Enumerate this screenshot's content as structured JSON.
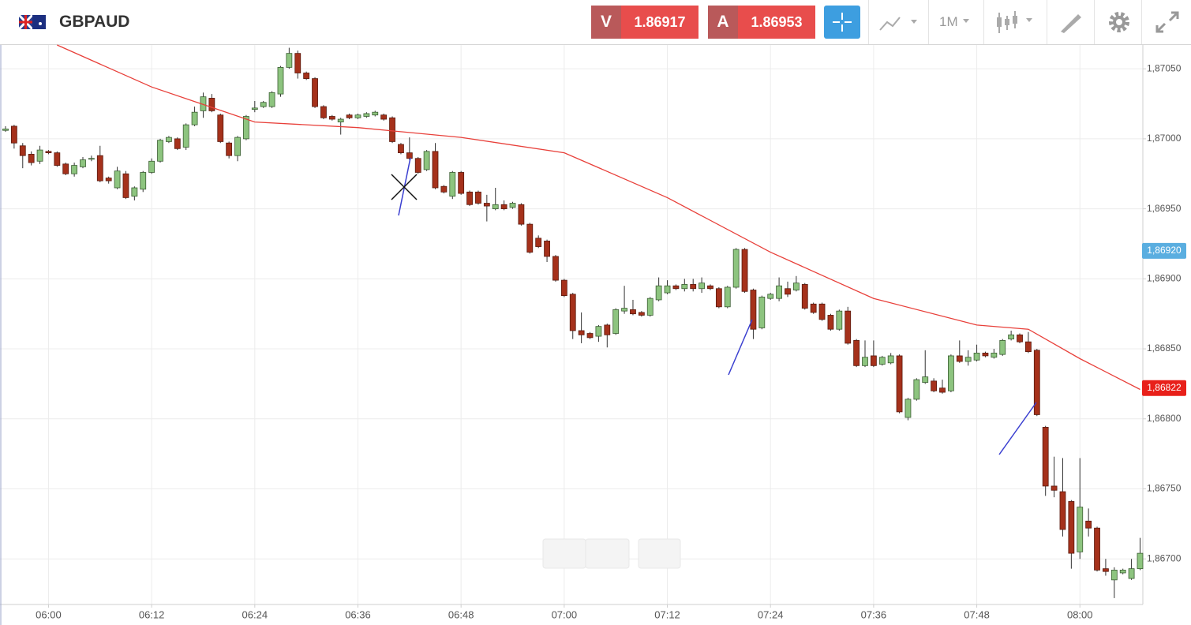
{
  "header": {
    "symbol": "GBPAUD",
    "bid_label": "V",
    "bid": "1.86917",
    "ask_label": "A",
    "ask": "1.86953",
    "timeframe": "1M"
  },
  "chart_data": {
    "type": "candlestick",
    "x": [
      "05:55",
      "05:56",
      "05:57",
      "05:58",
      "05:59",
      "06:00",
      "06:01",
      "06:02",
      "06:03",
      "06:04",
      "06:05",
      "06:06",
      "06:07",
      "06:08",
      "06:09",
      "06:10",
      "06:11",
      "06:12",
      "06:13",
      "06:14",
      "06:15",
      "06:16",
      "06:17",
      "06:18",
      "06:19",
      "06:20",
      "06:21",
      "06:22",
      "06:23",
      "06:24",
      "06:25",
      "06:26",
      "06:27",
      "06:28",
      "06:29",
      "06:30",
      "06:31",
      "06:32",
      "06:33",
      "06:34",
      "06:35",
      "06:36",
      "06:37",
      "06:38",
      "06:39",
      "06:40",
      "06:41",
      "06:42",
      "06:43",
      "06:44",
      "06:45",
      "06:46",
      "06:47",
      "06:48",
      "06:49",
      "06:50",
      "06:51",
      "06:52",
      "06:53",
      "06:54",
      "06:55",
      "06:56",
      "06:57",
      "06:58",
      "06:59",
      "07:00",
      "07:01",
      "07:02",
      "07:03",
      "07:04",
      "07:05",
      "07:06",
      "07:07",
      "07:08",
      "07:09",
      "07:10",
      "07:11",
      "07:12",
      "07:13",
      "07:14",
      "07:15",
      "07:16",
      "07:17",
      "07:18",
      "07:19",
      "07:20",
      "07:21",
      "07:22",
      "07:23",
      "07:24",
      "07:25",
      "07:26",
      "07:27",
      "07:28",
      "07:29",
      "07:30",
      "07:31",
      "07:32",
      "07:33",
      "07:34",
      "07:35",
      "07:36",
      "07:37",
      "07:38",
      "07:39",
      "07:40",
      "07:41",
      "07:42",
      "07:43",
      "07:44",
      "07:45",
      "07:46",
      "07:47",
      "07:48",
      "07:49",
      "07:50",
      "07:51",
      "07:52",
      "07:53",
      "07:54",
      "07:55",
      "07:56",
      "07:57",
      "07:58",
      "07:59",
      "08:00",
      "08:01",
      "08:02",
      "08:03",
      "08:04",
      "08:05",
      "08:06",
      "08:07"
    ],
    "open": [
      1.87006,
      1.87009,
      1.86995,
      1.86989,
      1.86984,
      1.86991,
      1.8699,
      1.86982,
      1.86975,
      1.8698,
      1.86986,
      1.86988,
      1.86972,
      1.86965,
      1.86975,
      1.86959,
      1.86964,
      1.86976,
      1.86984,
      1.86998,
      1.87,
      1.86994,
      1.8701,
      1.8702,
      1.87029,
      1.87017,
      1.86997,
      1.86988,
      1.87,
      1.87021,
      1.87023,
      1.87023,
      1.87032,
      1.87051,
      1.87061,
      1.87047,
      1.87043,
      1.87023,
      1.87016,
      1.87012,
      1.87017,
      1.87015,
      1.87016,
      1.87017,
      1.87017,
      1.87015,
      1.86996,
      1.8699,
      1.86986,
      1.86978,
      1.86991,
      1.86966,
      1.86959,
      1.86976,
      1.86962,
      1.86962,
      1.86954,
      1.8695,
      1.86953,
      1.86951,
      1.86953,
      1.86939,
      1.86929,
      1.86927,
      1.86916,
      1.86899,
      1.86889,
      1.86863,
      1.86861,
      1.86859,
      1.86867,
      1.86861,
      1.86877,
      1.86878,
      1.86876,
      1.86874,
      1.86885,
      1.8689,
      1.86895,
      1.86893,
      1.86896,
      1.86893,
      1.86895,
      1.86893,
      1.8688,
      1.86894,
      1.86921,
      1.86892,
      1.86865,
      1.86886,
      1.86886,
      1.86893,
      1.86892,
      1.86896,
      1.86882,
      1.86882,
      1.86874,
      1.86864,
      1.86877,
      1.86856,
      1.86838,
      1.86845,
      1.86839,
      1.8684,
      1.86845,
      1.86801,
      1.86814,
      1.86826,
      1.86827,
      1.86822,
      1.8682,
      1.86845,
      1.86841,
      1.86842,
      1.86847,
      1.86844,
      1.86846,
      1.86857,
      1.8686,
      1.86855,
      1.86849,
      1.86794,
      1.86752,
      1.86748,
      1.86741,
      1.86705,
      1.86727,
      1.86722,
      1.86693,
      1.86685,
      1.8669,
      1.86686,
      1.86693
    ],
    "high": [
      1.87009,
      1.8701,
      1.86997,
      1.86991,
      1.86995,
      1.86992,
      1.86991,
      1.86983,
      1.86983,
      1.86987,
      1.86988,
      1.86995,
      1.86973,
      1.8698,
      1.86977,
      1.86966,
      1.86977,
      1.86986,
      1.87,
      1.87002,
      1.87001,
      1.87011,
      1.87023,
      1.87033,
      1.87032,
      1.87018,
      1.86998,
      1.87002,
      1.87017,
      1.87027,
      1.87027,
      1.87034,
      1.87052,
      1.87065,
      1.87063,
      1.87048,
      1.87044,
      1.87024,
      1.87017,
      1.87015,
      1.87018,
      1.87018,
      1.87019,
      1.8702,
      1.87018,
      1.87016,
      1.86997,
      1.87001,
      1.86987,
      1.86992,
      1.86997,
      1.86967,
      1.86977,
      1.86977,
      1.86963,
      1.86963,
      1.8696,
      1.86965,
      1.86956,
      1.86955,
      1.86954,
      1.8694,
      1.86931,
      1.86928,
      1.86917,
      1.869,
      1.8689,
      1.86876,
      1.86862,
      1.86867,
      1.86868,
      1.86879,
      1.86895,
      1.86885,
      1.86877,
      1.86887,
      1.86901,
      1.86899,
      1.86896,
      1.869,
      1.869,
      1.86901,
      1.86896,
      1.86894,
      1.86895,
      1.86922,
      1.86922,
      1.86893,
      1.86888,
      1.8689,
      1.86901,
      1.86898,
      1.86902,
      1.86897,
      1.86883,
      1.86883,
      1.86875,
      1.86878,
      1.8688,
      1.86857,
      1.86856,
      1.86856,
      1.86845,
      1.86847,
      1.86846,
      1.86815,
      1.86829,
      1.86849,
      1.86829,
      1.86828,
      1.86846,
      1.86856,
      1.86849,
      1.86853,
      1.86848,
      1.8685,
      1.86857,
      1.86863,
      1.86861,
      1.86862,
      1.8685,
      1.86795,
      1.86773,
      1.86772,
      1.86742,
      1.86772,
      1.86736,
      1.86723,
      1.867,
      1.86694,
      1.86693,
      1.867,
      1.86715
    ],
    "low": [
      1.87005,
      1.86993,
      1.86979,
      1.86981,
      1.86982,
      1.86989,
      1.8698,
      1.86974,
      1.86973,
      1.86979,
      1.86984,
      1.86969,
      1.86968,
      1.86964,
      1.86957,
      1.86956,
      1.86962,
      1.86975,
      1.86983,
      1.86997,
      1.86992,
      1.86992,
      1.87009,
      1.87015,
      1.87019,
      1.86997,
      1.86986,
      1.86984,
      1.86999,
      1.87019,
      1.87022,
      1.87022,
      1.8703,
      1.8705,
      1.87043,
      1.87042,
      1.87022,
      1.87014,
      1.87013,
      1.87003,
      1.87014,
      1.87014,
      1.87015,
      1.87016,
      1.87013,
      1.86997,
      1.86989,
      1.86985,
      1.86975,
      1.86977,
      1.86964,
      1.86961,
      1.86957,
      1.8696,
      1.86952,
      1.86953,
      1.86941,
      1.86949,
      1.86949,
      1.8695,
      1.86938,
      1.86918,
      1.86922,
      1.86912,
      1.86898,
      1.86887,
      1.86857,
      1.86854,
      1.86857,
      1.86855,
      1.86851,
      1.8686,
      1.86875,
      1.86874,
      1.86873,
      1.86873,
      1.86884,
      1.86889,
      1.86892,
      1.86891,
      1.86891,
      1.8689,
      1.86892,
      1.86879,
      1.86879,
      1.86893,
      1.8689,
      1.86857,
      1.86864,
      1.86885,
      1.86884,
      1.86887,
      1.86891,
      1.86878,
      1.86875,
      1.8687,
      1.86863,
      1.86863,
      1.86853,
      1.86837,
      1.86837,
      1.86837,
      1.86838,
      1.86839,
      1.86804,
      1.86799,
      1.86813,
      1.86825,
      1.86819,
      1.86818,
      1.86819,
      1.8684,
      1.86838,
      1.86841,
      1.86844,
      1.86843,
      1.86845,
      1.86856,
      1.86854,
      1.86847,
      1.86802,
      1.86745,
      1.86744,
      1.86716,
      1.86693,
      1.867,
      1.86716,
      1.86691,
      1.86688,
      1.86672,
      1.86689,
      1.86685,
      1.86692
    ],
    "close": [
      1.87007,
      1.86997,
      1.86988,
      1.86983,
      1.86992,
      1.8699,
      1.86981,
      1.86975,
      1.86981,
      1.86985,
      1.86986,
      1.8697,
      1.8697,
      1.86977,
      1.86958,
      1.86965,
      1.86976,
      1.86984,
      1.86999,
      1.87001,
      1.86993,
      1.8701,
      1.87019,
      1.8703,
      1.8702,
      1.86998,
      1.86988,
      1.87001,
      1.87016,
      1.87022,
      1.87026,
      1.87033,
      1.87051,
      1.87061,
      1.87047,
      1.87043,
      1.87023,
      1.87015,
      1.87014,
      1.87014,
      1.87015,
      1.87017,
      1.87018,
      1.87019,
      1.87014,
      1.86998,
      1.8699,
      1.86986,
      1.86976,
      1.86991,
      1.86965,
      1.86962,
      1.86976,
      1.86961,
      1.86953,
      1.86954,
      1.86952,
      1.86953,
      1.8695,
      1.86954,
      1.86939,
      1.86919,
      1.86923,
      1.86916,
      1.86899,
      1.86888,
      1.86863,
      1.8686,
      1.86858,
      1.86866,
      1.8686,
      1.86878,
      1.86879,
      1.86875,
      1.86874,
      1.86886,
      1.86895,
      1.86895,
      1.86893,
      1.86896,
      1.86893,
      1.86897,
      1.86893,
      1.8688,
      1.86894,
      1.86921,
      1.86891,
      1.86864,
      1.86887,
      1.86889,
      1.86895,
      1.86889,
      1.86897,
      1.86879,
      1.86876,
      1.86871,
      1.86864,
      1.86877,
      1.86854,
      1.86838,
      1.86844,
      1.86838,
      1.86844,
      1.86845,
      1.86805,
      1.86814,
      1.86828,
      1.8683,
      1.8682,
      1.86819,
      1.86845,
      1.86841,
      1.86844,
      1.86847,
      1.86845,
      1.86847,
      1.86856,
      1.8686,
      1.86855,
      1.86848,
      1.86803,
      1.86752,
      1.86749,
      1.86721,
      1.86704,
      1.86737,
      1.86722,
      1.86692,
      1.86691,
      1.86692,
      1.86692,
      1.86693,
      1.86704
    ],
    "up_color": "#8dc47f",
    "down_color": "#a5311b",
    "ma": {
      "color": "#e8403a",
      "x": [
        "06:01",
        "06:12",
        "06:24",
        "06:36",
        "06:48",
        "07:00",
        "07:12",
        "07:24",
        "07:36",
        "07:48",
        "07:54",
        "08:00",
        "08:07"
      ],
      "values": [
        1.87067,
        1.87037,
        1.87012,
        1.87008,
        1.87001,
        1.8699,
        1.86958,
        1.86919,
        1.86886,
        1.86867,
        1.86864,
        1.86843,
        1.86821
      ]
    },
    "price_tags": [
      {
        "value": 1.8692,
        "label": "1,86920",
        "color": "#5aaee0"
      },
      {
        "value": 1.86822,
        "label": "1,86822",
        "color": "#e8201a"
      }
    ],
    "ylim": [
      1.86668,
      1.87067
    ],
    "yticks": [
      {
        "value": 1.867,
        "label": "1,86700"
      },
      {
        "value": 1.8675,
        "label": "1,86750"
      },
      {
        "value": 1.868,
        "label": "1,86800"
      },
      {
        "value": 1.8685,
        "label": "1,86850"
      },
      {
        "value": 1.869,
        "label": "1,86900"
      },
      {
        "value": 1.8695,
        "label": "1,86950"
      },
      {
        "value": 1.87,
        "label": "1,87000"
      },
      {
        "value": 1.8705,
        "label": "1,87050"
      }
    ],
    "xticks": [
      "06:00",
      "06:12",
      "06:24",
      "06:36",
      "06:48",
      "07:00",
      "07:12",
      "07:24",
      "07:36",
      "07:48",
      "08:00"
    ],
    "grid": true
  }
}
